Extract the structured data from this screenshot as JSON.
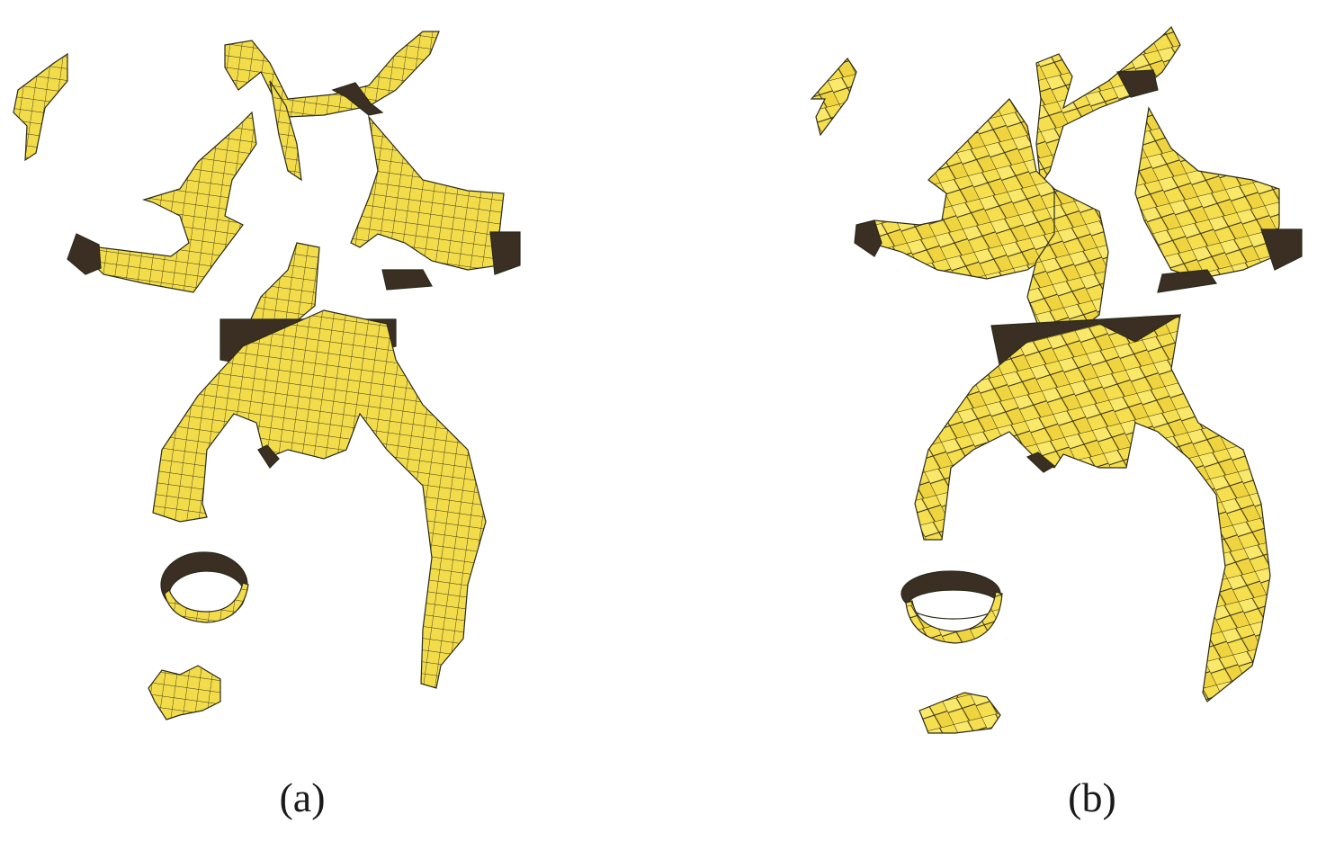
{
  "figure": {
    "panels": [
      {
        "id": "a",
        "label": "(a)",
        "mesh_style": "fine regular quadrilateral grid"
      },
      {
        "id": "b",
        "label": "(b)",
        "mesh_style": "coarse irregular quadrilateral mesh"
      }
    ],
    "colors": {
      "surface": "#f2dc4a",
      "surface_light": "#faec72",
      "inner": "#3a2f22",
      "edge": "#2a2a1a"
    }
  }
}
